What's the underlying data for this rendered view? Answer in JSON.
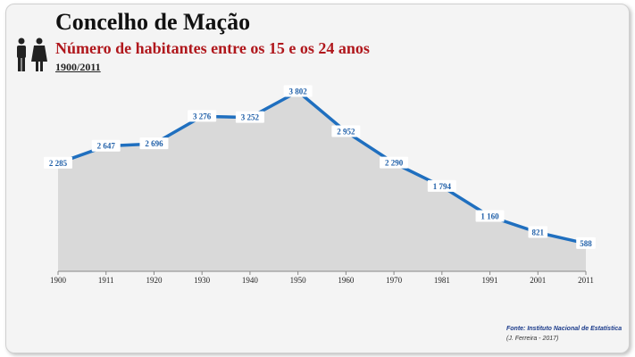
{
  "header": {
    "title": "Concelho de Mação",
    "subtitle": "Número de habitantes entre os 15 e os 24 anos",
    "period": "1900/2011",
    "icon": "man-woman-icon"
  },
  "footer": {
    "source": "Fonte: Instituto Nacional de Estatística",
    "author": "(J. Ferreira - 2017)"
  },
  "colors": {
    "line": "#1f6fbf",
    "area": "#d9d9d9",
    "label": "#1f5fa8",
    "title": "#111111",
    "subtitle": "#b0171c"
  },
  "chart_data": {
    "type": "area",
    "title": "Número de habitantes entre os 15 e os 24 anos",
    "xlabel": "",
    "ylabel": "",
    "x": [
      "1900",
      "1911",
      "1920",
      "1930",
      "1940",
      "1950",
      "1960",
      "1970",
      "1981",
      "1991",
      "2001",
      "2011"
    ],
    "values": [
      2285,
      2647,
      2696,
      3276,
      3252,
      3802,
      2952,
      2290,
      1794,
      1160,
      821,
      588
    ],
    "data_labels": [
      "2 285",
      "2 647",
      "2 696",
      "3 276",
      "3 252",
      "3 802",
      "2 952",
      "2 290",
      "1 794",
      "1 160",
      "821",
      "588"
    ],
    "ylim": [
      0,
      4000
    ],
    "grid": false,
    "legend": "none"
  }
}
